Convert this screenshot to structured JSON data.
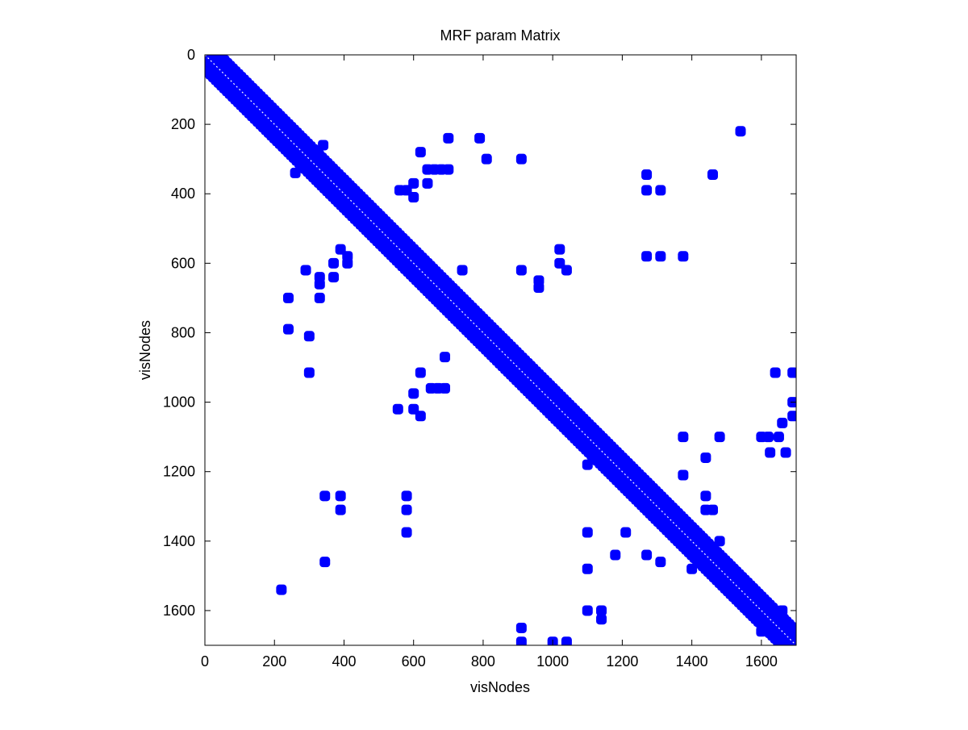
{
  "chart_data": {
    "type": "scatter",
    "title": "MRF param Matrix",
    "xlabel": "visNodes",
    "ylabel": "visNodes",
    "xlim": [
      0,
      1700
    ],
    "ylim": [
      0,
      1700
    ],
    "y_reversed": true,
    "x_ticks": [
      "0",
      "200",
      "400",
      "600",
      "800",
      "1000",
      "1200",
      "1400",
      "1600"
    ],
    "y_ticks": [
      "0",
      "200",
      "400",
      "600",
      "800",
      "1000",
      "1200",
      "1400",
      "1600"
    ],
    "grid": false,
    "marker_color": "#0000ff",
    "marker_shape": "rounded-square",
    "structure": "symmetric sparsity pattern with a dense main diagonal band",
    "diagonal_band": {
      "from": 0,
      "to": 1700,
      "half_width": 40
    },
    "diagonal_outliers": [
      [
        260,
        340
      ],
      [
        340,
        260
      ],
      [
        1400,
        1480
      ],
      [
        1480,
        1400
      ],
      [
        1600,
        1660
      ],
      [
        1660,
        1600
      ]
    ],
    "off_diagonal": [
      [
        220,
        1540
      ],
      [
        240,
        700
      ],
      [
        240,
        790
      ],
      [
        290,
        620
      ],
      [
        300,
        810
      ],
      [
        300,
        915
      ],
      [
        330,
        640
      ],
      [
        330,
        660
      ],
      [
        330,
        700
      ],
      [
        345,
        1270
      ],
      [
        345,
        1460
      ],
      [
        370,
        600
      ],
      [
        370,
        640
      ],
      [
        390,
        560
      ],
      [
        390,
        1270
      ],
      [
        390,
        1310
      ],
      [
        410,
        580
      ],
      [
        410,
        600
      ],
      [
        555,
        1020
      ],
      [
        560,
        390
      ],
      [
        580,
        390
      ],
      [
        580,
        1270
      ],
      [
        580,
        1310
      ],
      [
        580,
        1375
      ],
      [
        600,
        370
      ],
      [
        600,
        410
      ],
      [
        600,
        975
      ],
      [
        600,
        1020
      ],
      [
        620,
        280
      ],
      [
        620,
        915
      ],
      [
        620,
        1040
      ],
      [
        640,
        370
      ],
      [
        640,
        330
      ],
      [
        650,
        960
      ],
      [
        660,
        330
      ],
      [
        670,
        960
      ],
      [
        680,
        330
      ],
      [
        690,
        870
      ],
      [
        690,
        960
      ],
      [
        700,
        240
      ],
      [
        700,
        330
      ],
      [
        740,
        620
      ],
      [
        790,
        240
      ],
      [
        810,
        300
      ],
      [
        910,
        300
      ],
      [
        910,
        620
      ],
      [
        910,
        1650
      ],
      [
        910,
        1690
      ],
      [
        960,
        670
      ],
      [
        960,
        650
      ],
      [
        1000,
        1690
      ],
      [
        1020,
        560
      ],
      [
        1020,
        600
      ],
      [
        1040,
        620
      ],
      [
        1040,
        1690
      ],
      [
        1100,
        1375
      ],
      [
        1100,
        1480
      ],
      [
        1100,
        1600
      ],
      [
        1140,
        1600
      ],
      [
        1140,
        1625
      ],
      [
        1180,
        1440
      ],
      [
        1210,
        1375
      ],
      [
        1270,
        345
      ],
      [
        1270,
        390
      ],
      [
        1270,
        580
      ],
      [
        1270,
        1440
      ],
      [
        1310,
        390
      ],
      [
        1310,
        580
      ],
      [
        1310,
        1460
      ],
      [
        1375,
        580
      ],
      [
        1375,
        1100
      ],
      [
        1375,
        1210
      ],
      [
        1440,
        1160
      ],
      [
        1440,
        1270
      ],
      [
        1460,
        345
      ],
      [
        1460,
        1310
      ],
      [
        1480,
        1100
      ],
      [
        1540,
        220
      ],
      [
        1600,
        1100
      ],
      [
        1620,
        1100
      ],
      [
        1640,
        915
      ],
      [
        1650,
        1100
      ],
      [
        1660,
        1060
      ],
      [
        1670,
        1145
      ],
      [
        1690,
        915
      ],
      [
        1690,
        1000
      ],
      [
        1690,
        1040
      ],
      [
        1625,
        1145
      ],
      [
        1440,
        1310
      ],
      [
        1100,
        1180
      ]
    ]
  }
}
